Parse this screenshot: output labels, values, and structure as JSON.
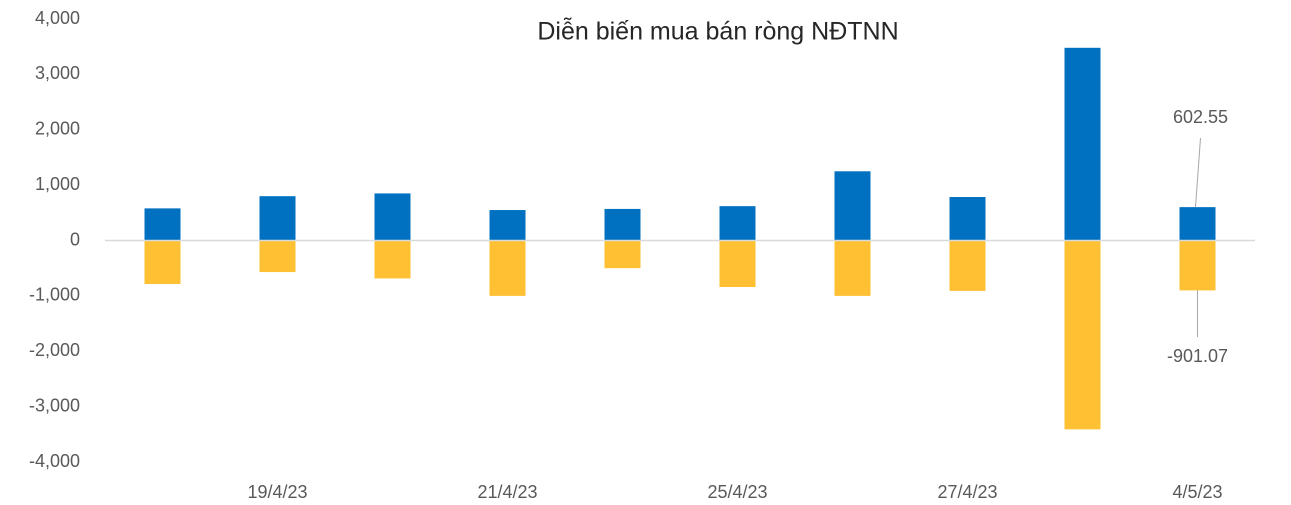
{
  "chart_data": {
    "type": "bar",
    "title": "Diễn biến mua bán ròng NĐTNN",
    "categories": [
      null,
      "19/4/23",
      null,
      "21/4/23",
      null,
      "25/4/23",
      null,
      "27/4/23",
      null,
      "4/5/23"
    ],
    "series": [
      {
        "color": "#0070c0",
        "values": [
          580,
          800,
          850,
          550,
          570,
          620,
          1250,
          785,
          3480,
          602.55
        ]
      },
      {
        "color": "#ffc133",
        "values": [
          -785,
          -570,
          -685,
          -1000,
          -500,
          -840,
          -1000,
          -910,
          -3410,
          -901.07
        ]
      }
    ],
    "ylim": [
      -4000,
      4000
    ],
    "yticks": [
      {
        "value": -4000,
        "label": "-4,000"
      },
      {
        "value": -3000,
        "label": "-3,000"
      },
      {
        "value": -2000,
        "label": "-2,000"
      },
      {
        "value": -1000,
        "label": "-1,000"
      },
      0,
      {
        "value": 1000,
        "label": "1,000"
      },
      {
        "value": 2000,
        "label": "2,000"
      },
      {
        "value": 3000,
        "label": "3,000"
      },
      {
        "value": 4000,
        "label": "4,000"
      }
    ],
    "grid": false
  }
}
